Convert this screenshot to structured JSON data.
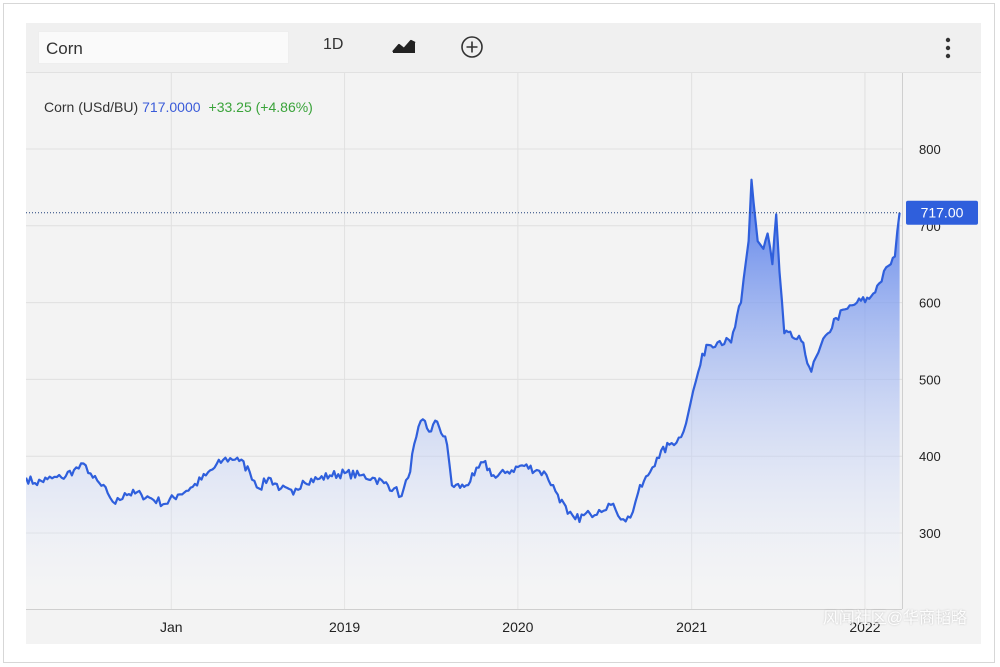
{
  "toolbar": {
    "symbol": "Corn",
    "interval": "1D",
    "chart_type_icon": "line-chart-icon",
    "add_icon": "plus-circle-icon",
    "menu_icon": "vertical-ellipsis-icon"
  },
  "legend": {
    "name": "Corn (USd/BU)",
    "price": "717.0000",
    "change": "+33.25 (+4.86%)"
  },
  "price_badge": "717.00",
  "watermark": "风闻社区@华商韬略",
  "colors": {
    "line": "#2f5fdc",
    "fill_top": "#4a74e8",
    "badge": "#2f5fdc",
    "change_up": "#3aa33a",
    "background": "#f3f3f3"
  },
  "chart_data": {
    "type": "area",
    "title": "",
    "xlabel": "",
    "ylabel": "",
    "y_axis_position": "right",
    "ylim": [
      200,
      820
    ],
    "y_ticks": [
      300,
      400,
      500,
      600,
      700,
      800
    ],
    "x_ticks": [
      {
        "date": "2018-01-01",
        "label": "Jan"
      },
      {
        "date": "2019-01-01",
        "label": "2019"
      },
      {
        "date": "2020-01-01",
        "label": "2020"
      },
      {
        "date": "2021-01-01",
        "label": "2021"
      },
      {
        "date": "2022-01-01",
        "label": "2022"
      }
    ],
    "last_value": 717.0,
    "x_start": "2017-03-01",
    "x_end": "2022-03-20",
    "grid": true,
    "series": [
      {
        "values": [
          [
            "2017-03-01",
            372
          ],
          [
            "2017-03-20",
            365
          ],
          [
            "2017-04-15",
            370
          ],
          [
            "2017-05-15",
            372
          ],
          [
            "2017-06-10",
            382
          ],
          [
            "2017-07-05",
            388
          ],
          [
            "2017-07-20",
            372
          ],
          [
            "2017-08-20",
            352
          ],
          [
            "2017-09-05",
            338
          ],
          [
            "2017-09-25",
            352
          ],
          [
            "2017-10-30",
            350
          ],
          [
            "2017-11-20",
            345
          ],
          [
            "2017-12-20",
            338
          ],
          [
            "2018-01-15",
            350
          ],
          [
            "2018-02-15",
            360
          ],
          [
            "2018-03-15",
            375
          ],
          [
            "2018-04-20",
            395
          ],
          [
            "2018-05-20",
            398
          ],
          [
            "2018-06-15",
            380
          ],
          [
            "2018-07-05",
            358
          ],
          [
            "2018-07-25",
            372
          ],
          [
            "2018-08-20",
            358
          ],
          [
            "2018-09-15",
            350
          ],
          [
            "2018-10-05",
            368
          ],
          [
            "2018-11-05",
            370
          ],
          [
            "2018-12-01",
            375
          ],
          [
            "2019-01-01",
            378
          ],
          [
            "2019-02-01",
            375
          ],
          [
            "2019-03-01",
            372
          ],
          [
            "2019-03-25",
            365
          ],
          [
            "2019-04-15",
            358
          ],
          [
            "2019-05-01",
            348
          ],
          [
            "2019-05-15",
            372
          ],
          [
            "2019-06-01",
            425
          ],
          [
            "2019-06-15",
            448
          ],
          [
            "2019-06-28",
            432
          ],
          [
            "2019-07-15",
            445
          ],
          [
            "2019-08-05",
            415
          ],
          [
            "2019-08-15",
            362
          ],
          [
            "2019-09-10",
            360
          ],
          [
            "2019-10-01",
            375
          ],
          [
            "2019-10-20",
            392
          ],
          [
            "2019-11-15",
            372
          ],
          [
            "2019-12-10",
            380
          ],
          [
            "2020-01-10",
            388
          ],
          [
            "2020-02-10",
            382
          ],
          [
            "2020-03-01",
            376
          ],
          [
            "2020-03-25",
            350
          ],
          [
            "2020-04-15",
            325
          ],
          [
            "2020-05-01",
            318
          ],
          [
            "2020-06-01",
            325
          ],
          [
            "2020-06-20",
            330
          ],
          [
            "2020-07-10",
            338
          ],
          [
            "2020-07-25",
            330
          ],
          [
            "2020-08-10",
            318
          ],
          [
            "2020-08-25",
            320
          ],
          [
            "2020-09-10",
            352
          ],
          [
            "2020-10-01",
            375
          ],
          [
            "2020-10-20",
            398
          ],
          [
            "2020-11-15",
            415
          ],
          [
            "2020-12-10",
            425
          ],
          [
            "2020-12-30",
            470
          ],
          [
            "2021-01-15",
            510
          ],
          [
            "2021-02-01",
            545
          ],
          [
            "2021-03-01",
            550
          ],
          [
            "2021-03-25",
            548
          ],
          [
            "2021-04-15",
            600
          ],
          [
            "2021-05-01",
            680
          ],
          [
            "2021-05-07",
            760
          ],
          [
            "2021-05-20",
            680
          ],
          [
            "2021-06-01",
            670
          ],
          [
            "2021-06-10",
            690
          ],
          [
            "2021-06-20",
            650
          ],
          [
            "2021-06-28",
            715
          ],
          [
            "2021-07-05",
            640
          ],
          [
            "2021-07-15",
            560
          ],
          [
            "2021-08-01",
            555
          ],
          [
            "2021-08-20",
            550
          ],
          [
            "2021-09-10",
            510
          ],
          [
            "2021-09-25",
            535
          ],
          [
            "2021-10-15",
            560
          ],
          [
            "2021-11-01",
            580
          ],
          [
            "2021-11-25",
            592
          ],
          [
            "2021-12-15",
            600
          ],
          [
            "2022-01-10",
            605
          ],
          [
            "2022-01-31",
            625
          ],
          [
            "2022-02-20",
            648
          ],
          [
            "2022-03-05",
            660
          ],
          [
            "2022-03-15",
            717
          ]
        ]
      }
    ]
  }
}
